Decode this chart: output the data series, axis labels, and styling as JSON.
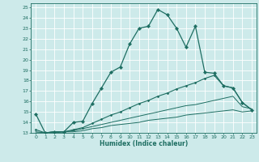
{
  "xlabel": "Humidex (Indice chaleur)",
  "bg_color": "#cdeaea",
  "line_color": "#1e6e62",
  "grid_color": "#ffffff",
  "xlim": [
    -0.5,
    23.5
  ],
  "ylim": [
    13,
    25.4
  ],
  "xticks": [
    0,
    1,
    2,
    3,
    4,
    5,
    6,
    7,
    8,
    9,
    10,
    11,
    12,
    13,
    14,
    15,
    16,
    17,
    18,
    19,
    20,
    21,
    22,
    23
  ],
  "yticks": [
    13,
    14,
    15,
    16,
    17,
    18,
    19,
    20,
    21,
    22,
    23,
    24,
    25
  ],
  "line1_x": [
    0,
    1,
    2,
    3,
    4,
    5,
    6,
    7,
    8,
    9,
    10,
    11,
    12,
    13,
    14,
    15,
    16,
    17,
    18,
    19,
    20,
    21,
    22,
    23
  ],
  "line1_y": [
    14.8,
    13.0,
    13.1,
    13.1,
    14.0,
    14.1,
    15.8,
    17.3,
    18.8,
    19.3,
    21.5,
    23.0,
    23.2,
    24.8,
    24.3,
    23.0,
    21.2,
    23.2,
    18.8,
    18.7,
    17.5,
    17.3,
    15.9,
    15.2
  ],
  "line2_x": [
    0,
    1,
    2,
    3,
    4,
    5,
    6,
    7,
    8,
    9,
    10,
    11,
    12,
    13,
    14,
    15,
    16,
    17,
    18,
    19,
    20,
    21,
    22,
    23
  ],
  "line2_y": [
    13.3,
    13.0,
    13.1,
    13.1,
    13.3,
    13.5,
    13.9,
    14.3,
    14.7,
    15.0,
    15.4,
    15.8,
    16.1,
    16.5,
    16.8,
    17.2,
    17.5,
    17.8,
    18.2,
    18.5,
    17.5,
    17.3,
    15.9,
    15.2
  ],
  "line3_x": [
    0,
    1,
    2,
    3,
    4,
    5,
    6,
    7,
    8,
    9,
    10,
    11,
    12,
    13,
    14,
    15,
    16,
    17,
    18,
    19,
    20,
    21,
    22,
    23
  ],
  "line3_y": [
    13.1,
    13.0,
    13.1,
    13.1,
    13.2,
    13.4,
    13.6,
    13.8,
    14.0,
    14.2,
    14.4,
    14.6,
    14.8,
    15.0,
    15.2,
    15.4,
    15.6,
    15.7,
    15.9,
    16.1,
    16.3,
    16.5,
    15.5,
    15.3
  ],
  "line4_x": [
    0,
    1,
    2,
    3,
    4,
    5,
    6,
    7,
    8,
    9,
    10,
    11,
    12,
    13,
    14,
    15,
    16,
    17,
    18,
    19,
    20,
    21,
    22,
    23
  ],
  "line4_y": [
    13.0,
    13.0,
    13.0,
    13.1,
    13.1,
    13.2,
    13.4,
    13.5,
    13.7,
    13.8,
    13.9,
    14.0,
    14.2,
    14.3,
    14.4,
    14.5,
    14.7,
    14.8,
    14.9,
    15.0,
    15.1,
    15.2,
    15.0,
    15.1
  ]
}
